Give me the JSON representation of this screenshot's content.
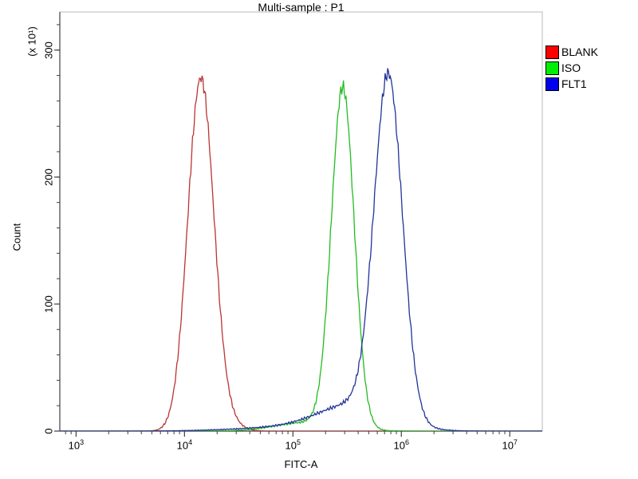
{
  "chart_data": {
    "type": "line",
    "subtype": "flow-cytometry-histogram-overlay",
    "title": "Multi-sample : P1",
    "xlabel": "FITC-A",
    "ylabel": "Count",
    "y_multiplier_label": "(x 10¹)",
    "x_scale": "log10",
    "x_range_log10": [
      2.85,
      7.3
    ],
    "x_tick_base": "10",
    "x_tick_exponents": [
      3,
      4,
      5,
      6,
      7
    ],
    "x_ticks": [
      "10³",
      "10⁴",
      "10⁵",
      "10⁶",
      "10⁷"
    ],
    "y_range": [
      0,
      330
    ],
    "y_ticks": [
      0,
      100,
      200,
      300
    ],
    "y_minor_step": 20,
    "grid": false,
    "legend_position": "outside-top-right",
    "series": [
      {
        "name": "BLANK",
        "color": "#bb3333",
        "legend_color": "#ff0000",
        "peak_x_label": "1.4e4",
        "peak_log10x": 4.15,
        "peak_count": 277,
        "sigma_decades": 0.12,
        "shoulders": [
          {
            "center": 4.38,
            "sigma": 0.12,
            "height": 7
          }
        ]
      },
      {
        "name": "ISO",
        "color": "#22bb22",
        "legend_color": "#00ee00",
        "peak_x_label": "3e5",
        "peak_log10x": 5.46,
        "peak_count": 267,
        "sigma_decades": 0.105,
        "shoulders": [
          {
            "center": 5.15,
            "sigma": 0.3,
            "height": 7
          }
        ]
      },
      {
        "name": "FLT1",
        "color": "#223399",
        "legend_color": "#0000ee",
        "peak_x_label": "7.5e5",
        "peak_log10x": 5.88,
        "peak_count": 268,
        "sigma_decades": 0.13,
        "shoulders": [
          {
            "center": 5.58,
            "sigma": 0.33,
            "height": 20
          },
          {
            "center": 5.0,
            "sigma": 0.5,
            "height": 3
          }
        ]
      }
    ]
  },
  "legend": {
    "items": [
      {
        "label": "BLANK",
        "color": "#ff0000"
      },
      {
        "label": "ISO",
        "color": "#00ee00"
      },
      {
        "label": "FLT1",
        "color": "#0000ee"
      }
    ]
  }
}
